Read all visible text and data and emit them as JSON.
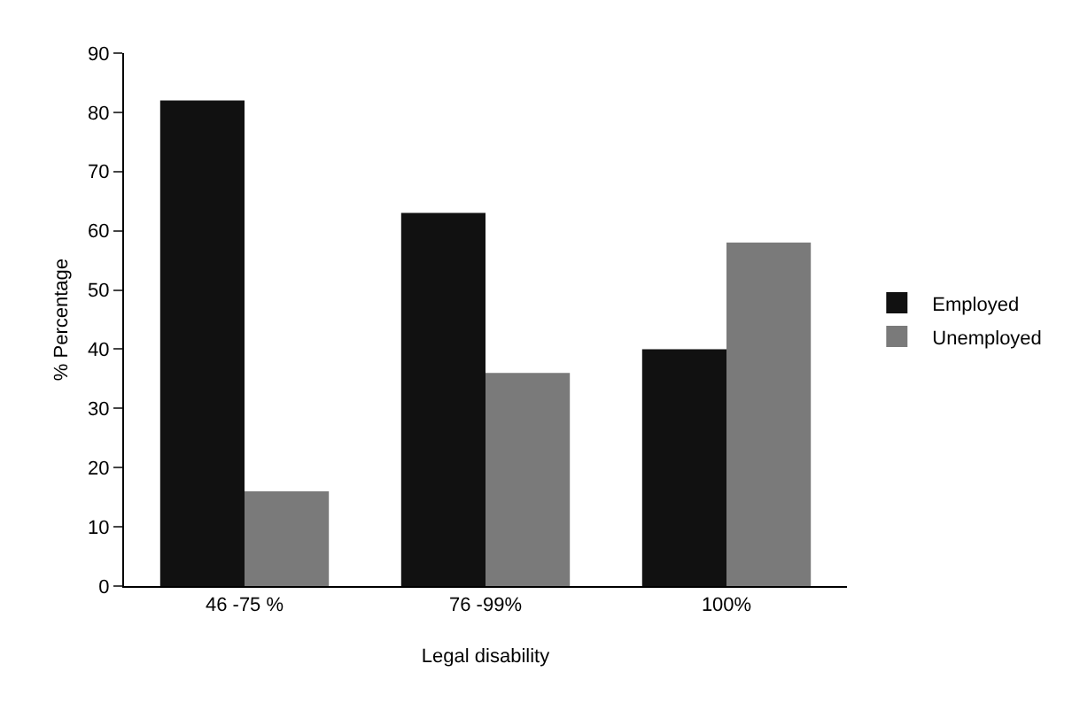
{
  "chart_data": {
    "type": "bar",
    "xlabel": "Legal disability",
    "ylabel": "% Percentage",
    "categories": [
      "46 -75 %",
      "76 -99%",
      "100%"
    ],
    "series": [
      {
        "name": "Employed",
        "color": "#111111",
        "values": [
          82,
          63,
          40
        ]
      },
      {
        "name": "Unemployed",
        "color": "#7a7a7a",
        "values": [
          16,
          36,
          58
        ]
      }
    ],
    "ylim": [
      0,
      90
    ],
    "yticks": [
      0,
      10,
      20,
      30,
      40,
      50,
      60,
      70,
      80,
      90
    ],
    "legend": "right"
  }
}
